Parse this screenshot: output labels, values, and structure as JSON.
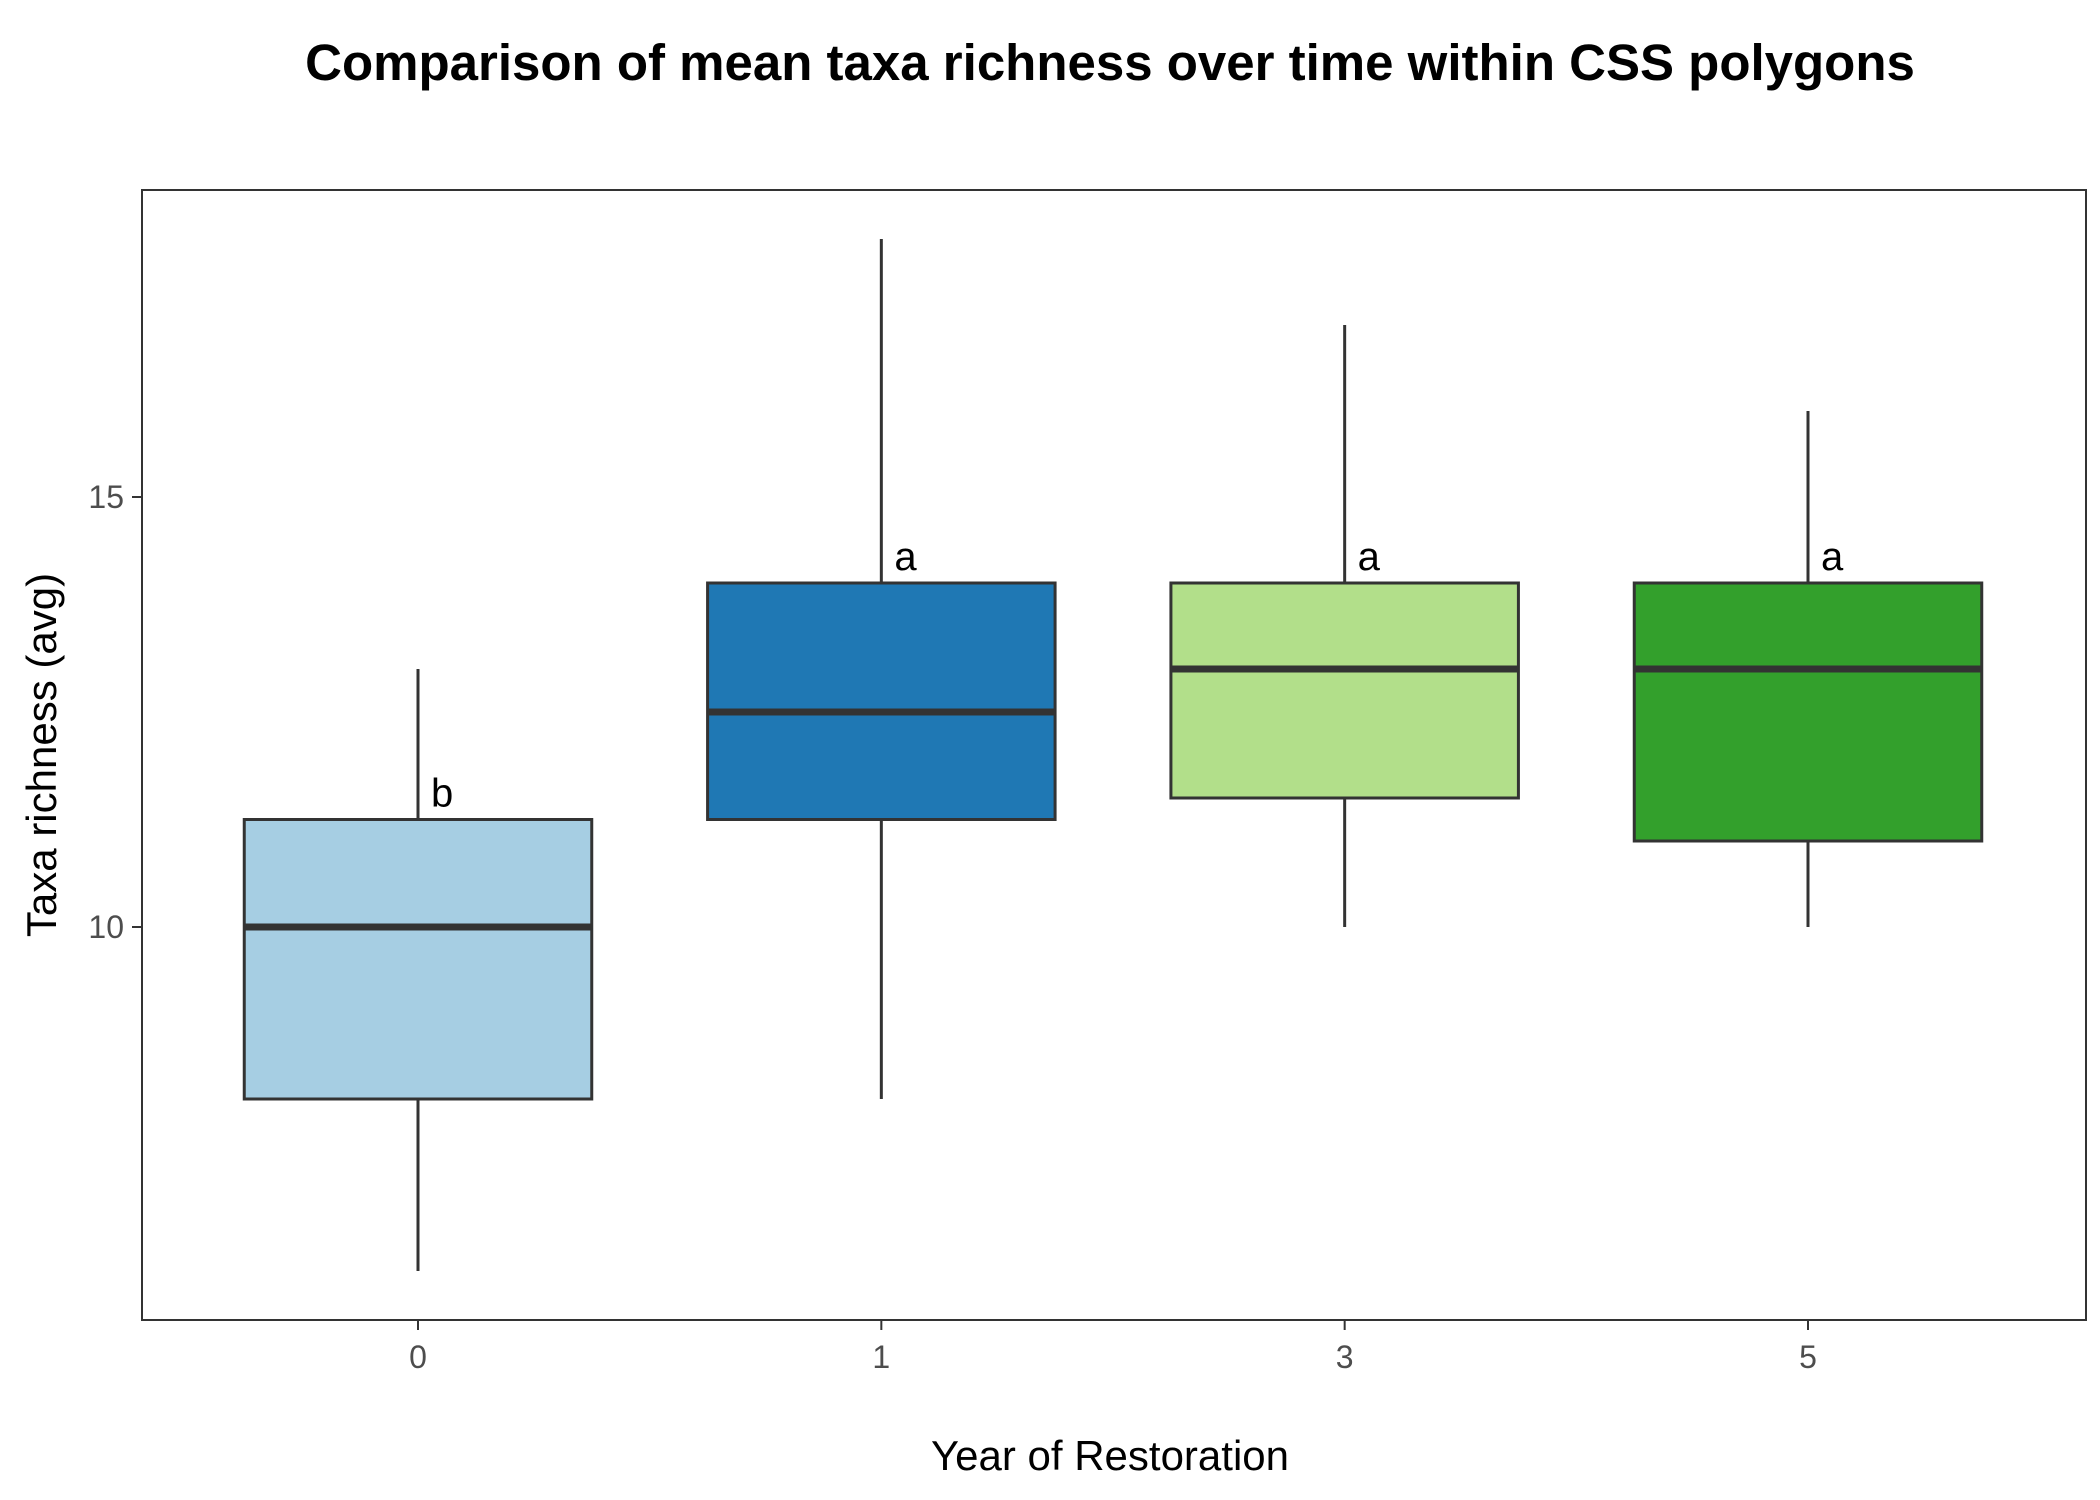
{
  "chart_data": {
    "type": "box",
    "title": "Comparison of mean taxa richness over time within CSS polygons",
    "xlabel": "Year of Restoration",
    "ylabel": "Taxa richness (avg)",
    "categories": [
      "0",
      "1",
      "3",
      "5"
    ],
    "y_ticks": [
      10,
      15
    ],
    "y_tick_labels": [
      "10",
      "15"
    ],
    "ylim": [
      5.4,
      18.5
    ],
    "grid": false,
    "legend": "none",
    "boxes": [
      {
        "category": "0",
        "min": 6.0,
        "q1": 8.0,
        "median": 10.0,
        "q3": 11.25,
        "max": 13.0,
        "color": "#a6cee3",
        "group_label": "b"
      },
      {
        "category": "1",
        "min": 8.0,
        "q1": 11.25,
        "median": 12.5,
        "q3": 14.0,
        "max": 18.0,
        "color": "#1f78b4",
        "group_label": "a"
      },
      {
        "category": "3",
        "min": 10.0,
        "q1": 11.5,
        "median": 13.0,
        "q3": 14.0,
        "max": 17.0,
        "color": "#b2df8a",
        "group_label": "a"
      },
      {
        "category": "5",
        "min": 10.0,
        "q1": 11.0,
        "median": 13.0,
        "q3": 14.0,
        "max": 16.0,
        "color": "#33a02c",
        "group_label": "a"
      }
    ],
    "line_color": "#333333"
  }
}
